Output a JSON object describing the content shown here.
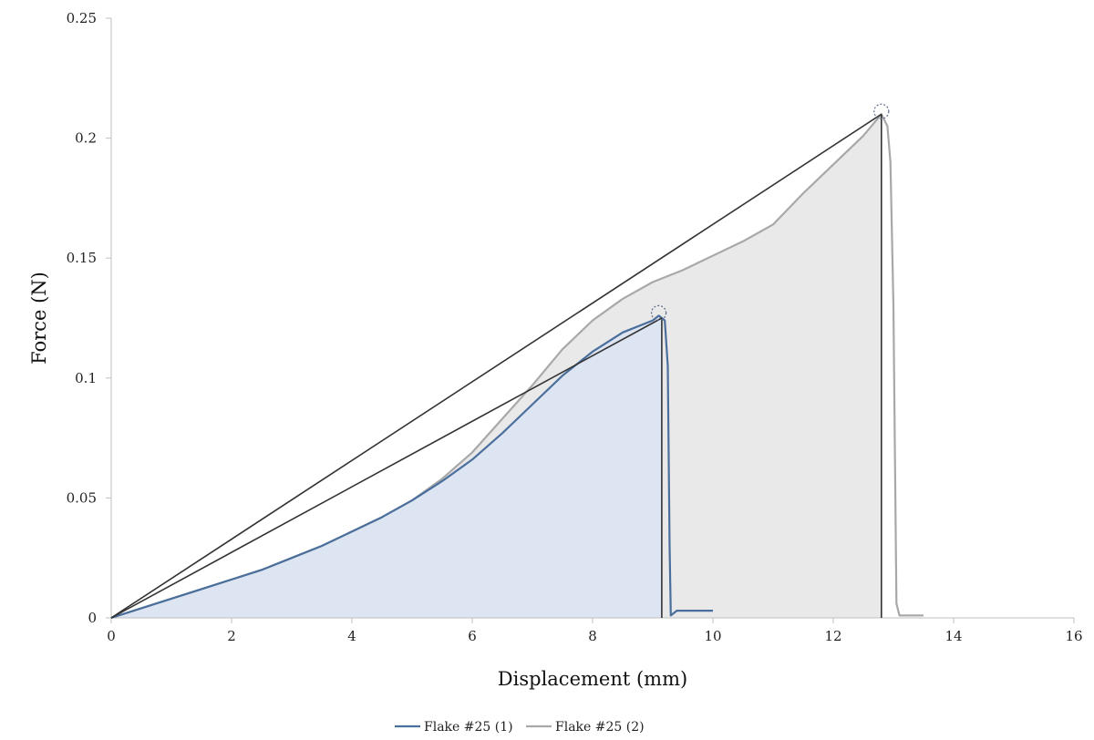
{
  "chart_data": {
    "type": "line",
    "title": "",
    "xlabel": "Displacement (mm)",
    "ylabel": "Force (N)",
    "xlim": [
      0,
      16
    ],
    "ylim": [
      0,
      0.25
    ],
    "x_ticks": [
      "0",
      "2",
      "4",
      "6",
      "8",
      "10",
      "12",
      "14",
      "16"
    ],
    "y_ticks": [
      "0",
      "0.05",
      "0.1",
      "0.15",
      "0.2",
      "0.25"
    ],
    "grid": false,
    "legend_position": "bottom",
    "series": [
      {
        "name": "Flake #25 (1)",
        "color": "#4a6f9c",
        "fill": "#dde5f2",
        "points": [
          [
            0,
            0
          ],
          [
            0.5,
            0.004
          ],
          [
            1,
            0.008
          ],
          [
            1.5,
            0.012
          ],
          [
            2,
            0.016
          ],
          [
            2.5,
            0.02
          ],
          [
            3,
            0.025
          ],
          [
            3.5,
            0.03
          ],
          [
            4,
            0.036
          ],
          [
            4.5,
            0.042
          ],
          [
            5,
            0.049
          ],
          [
            5.5,
            0.057
          ],
          [
            6,
            0.066
          ],
          [
            6.5,
            0.077
          ],
          [
            7,
            0.089
          ],
          [
            7.5,
            0.101
          ],
          [
            8,
            0.111
          ],
          [
            8.5,
            0.119
          ],
          [
            9,
            0.124
          ],
          [
            9.1,
            0.126
          ],
          [
            9.2,
            0.124
          ],
          [
            9.25,
            0.105
          ],
          [
            9.28,
            0.03
          ],
          [
            9.3,
            0.001
          ],
          [
            9.4,
            0.003
          ],
          [
            9.7,
            0.003
          ],
          [
            10,
            0.003
          ]
        ]
      },
      {
        "name": "Flake #25 (2)",
        "color": "#a8a8a8",
        "fill": "#e9e9e9",
        "points": [
          [
            0,
            0
          ],
          [
            0.5,
            0.004
          ],
          [
            1,
            0.008
          ],
          [
            1.5,
            0.012
          ],
          [
            2,
            0.016
          ],
          [
            2.5,
            0.02
          ],
          [
            3,
            0.025
          ],
          [
            3.5,
            0.03
          ],
          [
            4,
            0.036
          ],
          [
            4.5,
            0.042
          ],
          [
            5,
            0.049
          ],
          [
            5.5,
            0.058
          ],
          [
            6,
            0.069
          ],
          [
            6.5,
            0.083
          ],
          [
            7,
            0.097
          ],
          [
            7.5,
            0.112
          ],
          [
            8,
            0.124
          ],
          [
            8.5,
            0.133
          ],
          [
            9,
            0.14
          ],
          [
            9.5,
            0.145
          ],
          [
            10,
            0.151
          ],
          [
            10.5,
            0.157
          ],
          [
            11,
            0.164
          ],
          [
            11.5,
            0.177
          ],
          [
            12,
            0.189
          ],
          [
            12.5,
            0.201
          ],
          [
            12.8,
            0.21
          ],
          [
            12.9,
            0.205
          ],
          [
            12.95,
            0.19
          ],
          [
            13,
            0.13
          ],
          [
            13.05,
            0.006
          ],
          [
            13.1,
            0.001
          ],
          [
            13.2,
            0.001
          ],
          [
            13.5,
            0.001
          ]
        ]
      }
    ],
    "reference_lines": [
      {
        "from": [
          0,
          0
        ],
        "to": [
          9.15,
          0.125
        ],
        "drop_to_axis": true
      },
      {
        "from": [
          0,
          0
        ],
        "to": [
          12.8,
          0.21
        ],
        "drop_to_axis": true
      }
    ],
    "peak_markers": [
      [
        9.1,
        0.126
      ],
      [
        12.8,
        0.21
      ]
    ]
  }
}
